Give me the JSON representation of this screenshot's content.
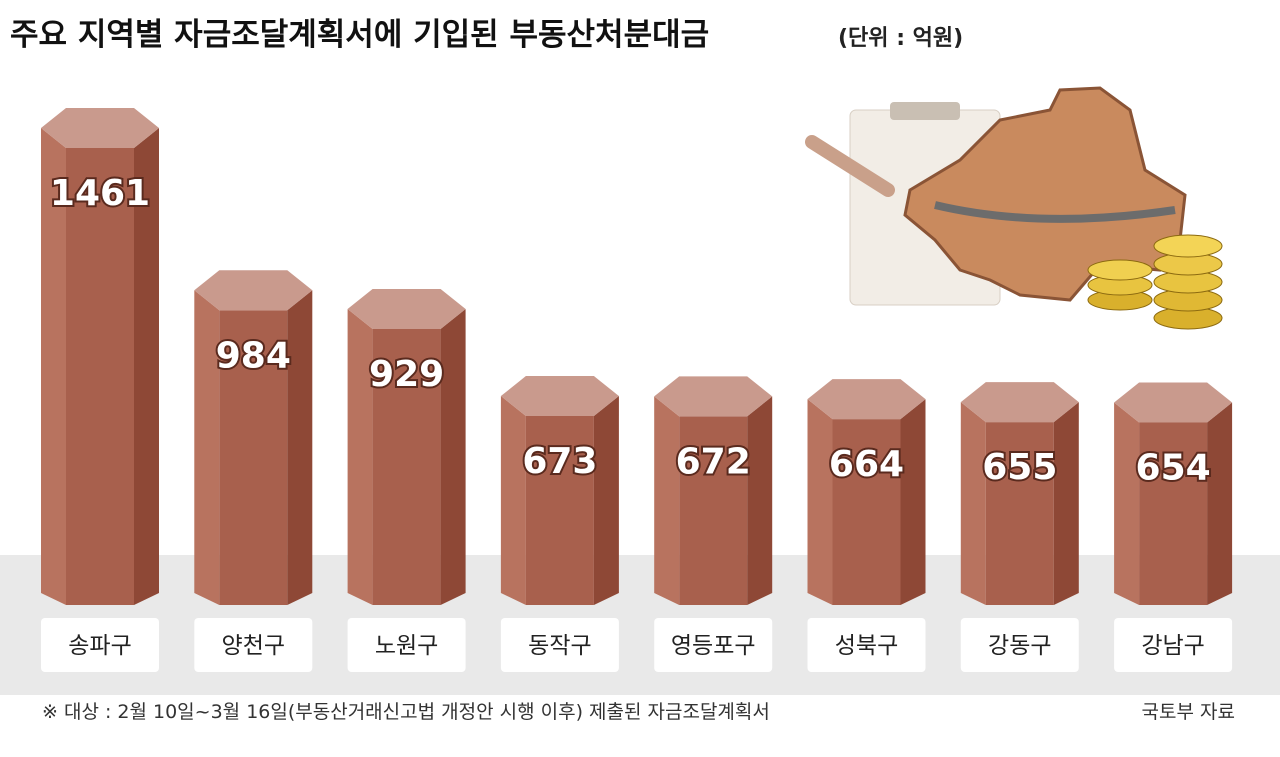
{
  "chart_data": {
    "type": "bar",
    "title": "주요 지역별 자금조달계획서에 기입된 부동산처분대금",
    "subtitle": "(단위 : 억원)",
    "categories": [
      "송파구",
      "양천구",
      "노원구",
      "동작구",
      "영등포구",
      "성북구",
      "강동구",
      "강남구"
    ],
    "values": [
      1461,
      984,
      929,
      673,
      672,
      664,
      655,
      654
    ],
    "color": "#a8604d",
    "note": "※ 대상 : 2월 10일~3월 16일(부동산거래신고법 개정안 시행 이후) 제출된 자금조달계획서",
    "source": "국토부 자료"
  }
}
